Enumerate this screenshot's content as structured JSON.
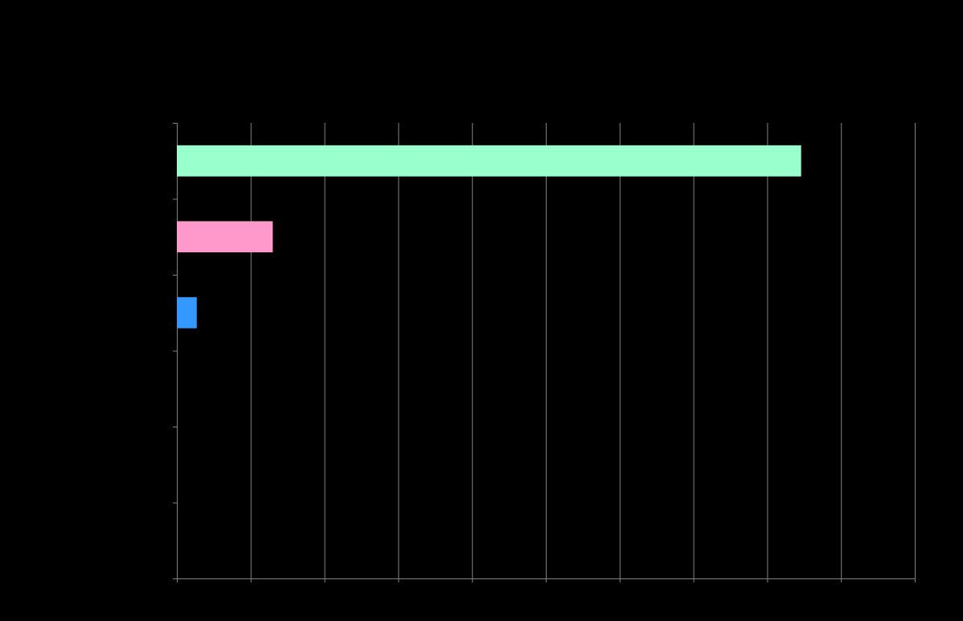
{
  "chart_data": {
    "type": "bar",
    "orientation": "horizontal",
    "title": "",
    "xlabel": "",
    "ylabel": "",
    "xlim": [
      0,
      10
    ],
    "x_ticks": [
      0,
      1,
      2,
      3,
      4,
      5,
      6,
      7,
      8,
      9,
      10
    ],
    "category_slots": 6,
    "grid": true,
    "legend": "none",
    "bars": [
      {
        "slot": 0,
        "value": 8.46,
        "color": "#99FFCC"
      },
      {
        "slot": 1,
        "value": 1.3,
        "color": "#FF99CC"
      },
      {
        "slot": 2,
        "value": 0.27,
        "color": "#3399FF"
      }
    ]
  },
  "colors": {
    "background": "#000000",
    "gridline": "#808080",
    "axis": "#000000"
  }
}
